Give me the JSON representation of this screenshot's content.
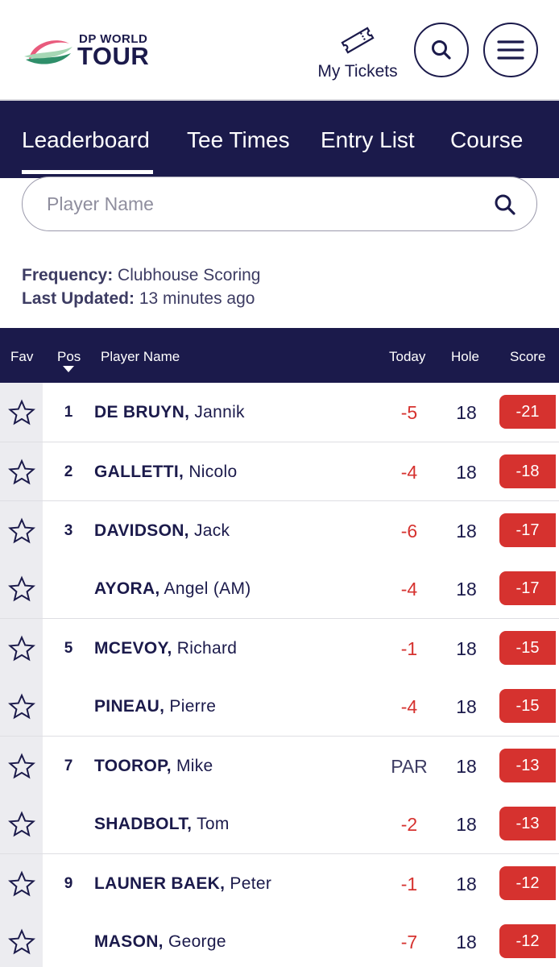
{
  "header": {
    "logo_small": "DP WORLD",
    "logo_big": "TOUR",
    "tickets_label": "My Tickets"
  },
  "tabs": [
    {
      "label": "Leaderboard",
      "active": true
    },
    {
      "label": "Tee Times",
      "active": false
    },
    {
      "label": "Entry List",
      "active": false
    },
    {
      "label": "Course",
      "active": false
    }
  ],
  "search": {
    "placeholder": "Player Name",
    "value": ""
  },
  "meta": {
    "frequency_label": "Frequency:",
    "frequency_value": "Clubhouse Scoring",
    "updated_label": "Last Updated:",
    "updated_value": "13 minutes ago"
  },
  "table": {
    "headers": {
      "fav": "Fav",
      "pos": "Pos",
      "name": "Player Name",
      "today": "Today",
      "hole": "Hole",
      "score": "Score"
    },
    "rows": [
      {
        "pos": "1",
        "last": "DE BRUYN,",
        "first": "Jannik",
        "today": "-5",
        "hole": "18",
        "score": "-21"
      },
      {
        "pos": "2",
        "last": "GALLETTI,",
        "first": "Nicolo",
        "today": "-4",
        "hole": "18",
        "score": "-18"
      },
      {
        "pos": "3",
        "last": "DAVIDSON,",
        "first": "Jack",
        "today": "-6",
        "hole": "18",
        "score": "-17"
      },
      {
        "pos": "",
        "last": "AYORA,",
        "first": "Angel (AM)",
        "today": "-4",
        "hole": "18",
        "score": "-17"
      },
      {
        "pos": "5",
        "last": "MCEVOY,",
        "first": "Richard",
        "today": "-1",
        "hole": "18",
        "score": "-15"
      },
      {
        "pos": "",
        "last": "PINEAU,",
        "first": "Pierre",
        "today": "-4",
        "hole": "18",
        "score": "-15"
      },
      {
        "pos": "7",
        "last": "TOOROP,",
        "first": "Mike",
        "today": "PAR",
        "hole": "18",
        "score": "-13"
      },
      {
        "pos": "",
        "last": "SHADBOLT,",
        "first": "Tom",
        "today": "-2",
        "hole": "18",
        "score": "-13"
      },
      {
        "pos": "9",
        "last": "LAUNER BAEK,",
        "first": "Peter",
        "today": "-1",
        "hole": "18",
        "score": "-12"
      },
      {
        "pos": "",
        "last": "MASON,",
        "first": "George",
        "today": "-7",
        "hole": "18",
        "score": "-12"
      }
    ]
  },
  "colors": {
    "navy": "#1b1a4b",
    "under_par_red": "#d6322f",
    "par_text": "#3d3c63"
  },
  "icons": {
    "ticket": "ticket-icon",
    "search": "search-icon",
    "menu": "hamburger-menu-icon",
    "favourite": "star-outline-icon",
    "sort": "sort-descending-icon"
  }
}
